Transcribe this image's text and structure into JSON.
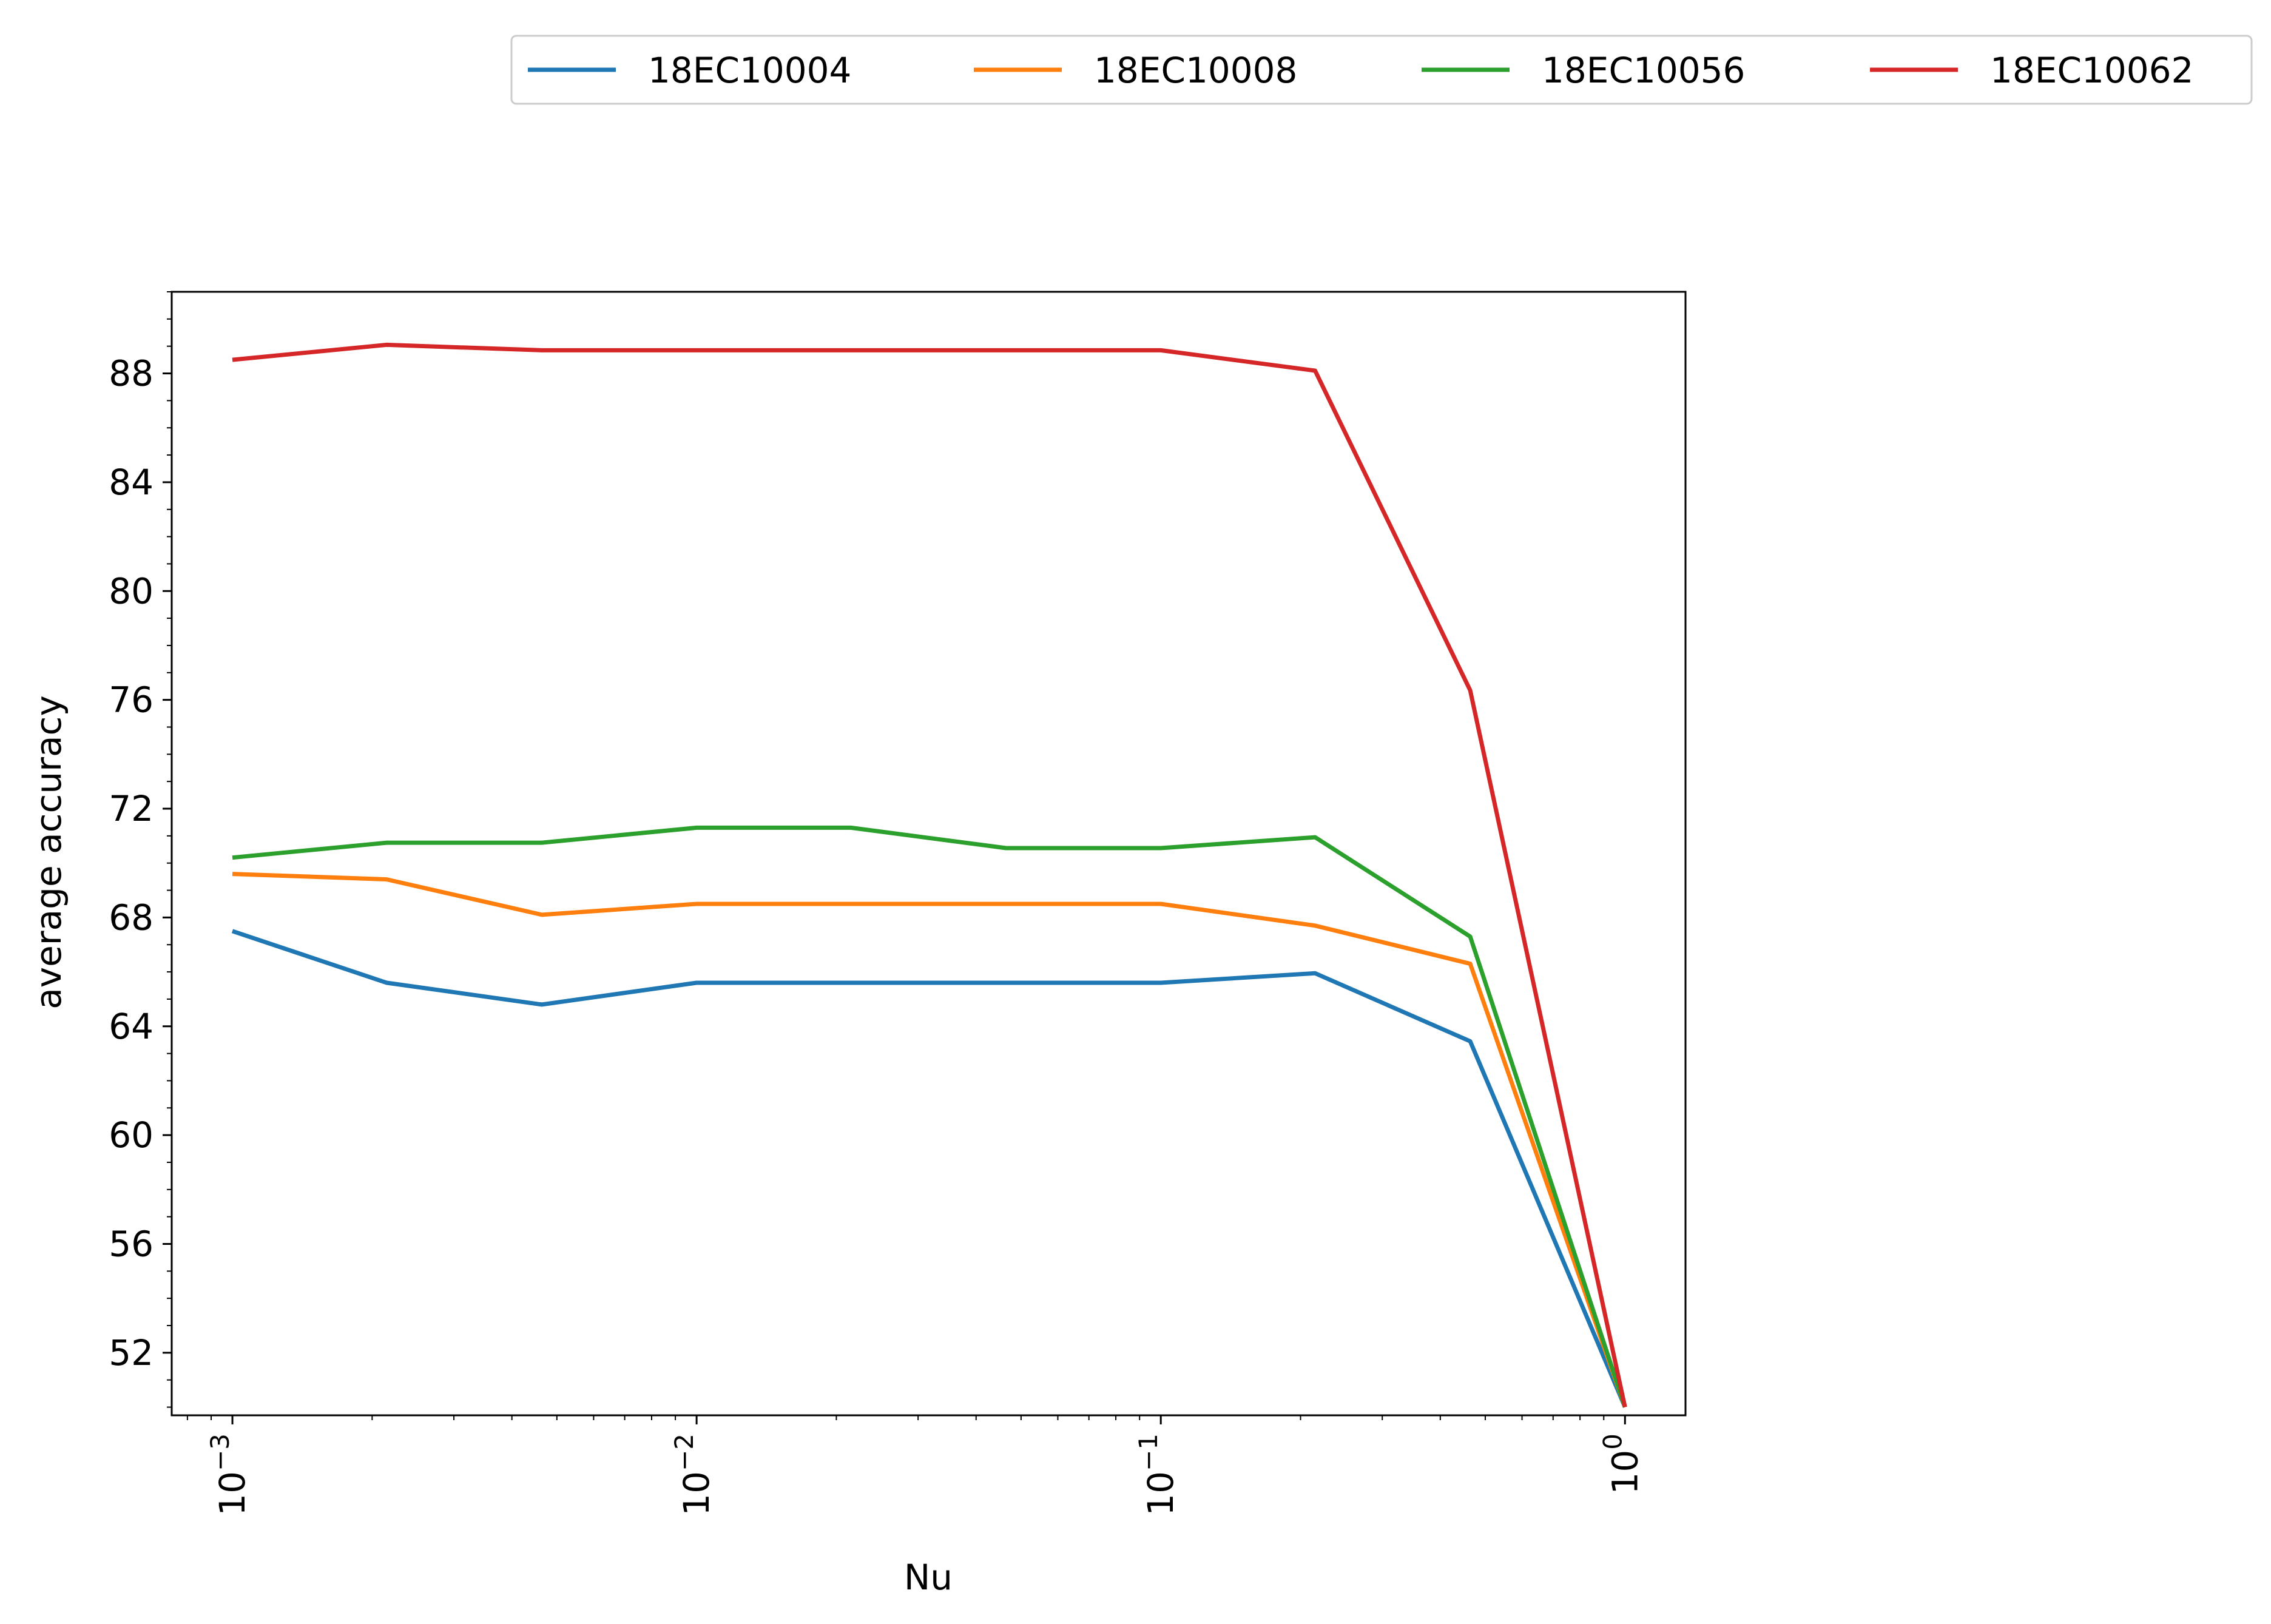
{
  "chart_data": {
    "type": "line",
    "xlabel": "Nu",
    "ylabel": "average accuracy",
    "xscale": "log",
    "xlim": [
      0.00074,
      1.35
    ],
    "ylim": [
      49.7,
      91.0
    ],
    "grid": false,
    "legend_position": "top, outside plot, single row",
    "x": [
      0.001,
      0.00215,
      0.00464,
      0.01,
      0.0215,
      0.0464,
      0.1,
      0.215,
      0.464,
      1.0
    ],
    "x_ticks": [
      {
        "value": 0.001,
        "base": "10",
        "exp": "−3"
      },
      {
        "value": 0.01,
        "base": "10",
        "exp": "−2"
      },
      {
        "value": 0.1,
        "base": "10",
        "exp": "−1"
      },
      {
        "value": 1.0,
        "base": "10",
        "exp": "0"
      }
    ],
    "y_ticks": [
      52,
      56,
      60,
      64,
      68,
      72,
      76,
      80,
      84,
      88
    ],
    "series": [
      {
        "name": "18EC10004",
        "color": "#1f77b4",
        "values": [
          67.5,
          65.6,
          64.8,
          65.6,
          65.6,
          65.6,
          65.6,
          65.95,
          63.45,
          50.0
        ]
      },
      {
        "name": "18EC10008",
        "color": "#ff7f0e",
        "values": [
          69.6,
          69.4,
          68.1,
          68.5,
          68.5,
          68.5,
          68.5,
          67.7,
          66.3,
          50.0
        ]
      },
      {
        "name": "18EC10056",
        "color": "#2ca02c",
        "values": [
          70.2,
          70.75,
          70.75,
          71.3,
          71.3,
          70.55,
          70.55,
          70.95,
          67.3,
          50.0
        ]
      },
      {
        "name": "18EC10062",
        "color": "#d62728",
        "values": [
          88.5,
          89.05,
          88.85,
          88.85,
          88.85,
          88.85,
          88.85,
          88.1,
          76.35,
          50.0
        ]
      }
    ]
  }
}
